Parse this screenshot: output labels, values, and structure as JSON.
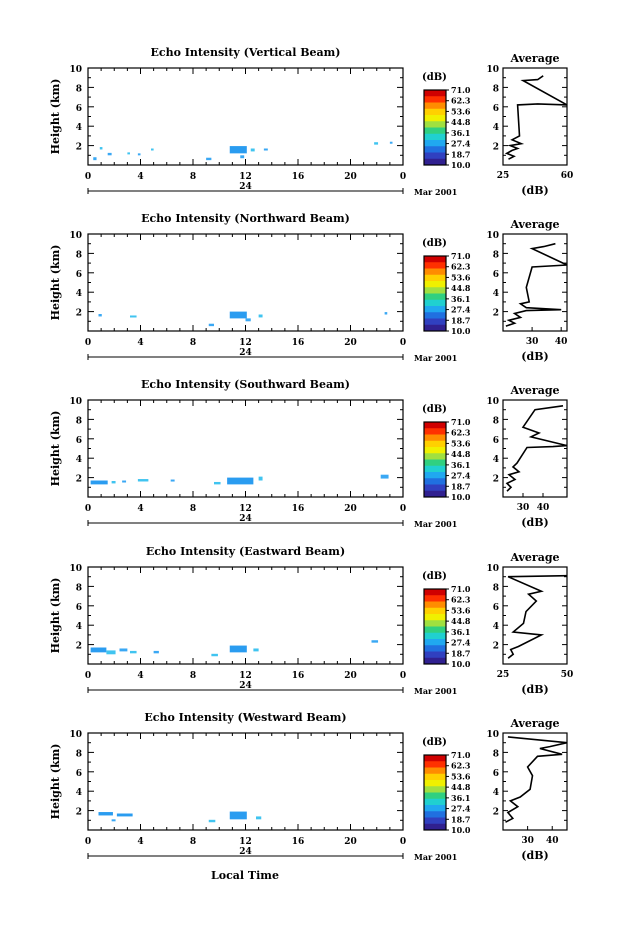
{
  "figure": {
    "x_label": "Local Time",
    "date_label": "Mar 2001",
    "day_label": "24",
    "colorbar_unit": "(dB)",
    "avg_title": "Average",
    "avg_xlabel": "(dB)",
    "y_label": "Height (km)"
  },
  "colorbar": {
    "levels": [
      "71.0",
      "62.3",
      "53.6",
      "44.8",
      "36.1",
      "27.4",
      "18.7",
      "10.0"
    ],
    "colors": [
      "#d00000",
      "#ff3000",
      "#ff8c00",
      "#ffd000",
      "#f0f000",
      "#a0e040",
      "#30d080",
      "#20d0d0",
      "#20a8f0",
      "#2070e0",
      "#3040c0",
      "#302090"
    ]
  },
  "chart_data": [
    {
      "type": "heatmap",
      "title": "Echo Intensity (Vertical Beam)",
      "xlim": [
        0,
        24
      ],
      "ylim": [
        0,
        10
      ],
      "xticks": [
        "0",
        "4",
        "8",
        "12",
        "16",
        "20",
        "0"
      ],
      "yticks": [
        "2",
        "4",
        "6",
        "8",
        "10"
      ],
      "avg": {
        "xlim": [
          25,
          60
        ],
        "xticks": [
          "25",
          "60"
        ],
        "profile": [
          [
            28,
            0.6
          ],
          [
            31,
            0.9
          ],
          [
            27,
            1.2
          ],
          [
            30,
            1.5
          ],
          [
            33,
            1.7
          ],
          [
            29,
            2.0
          ],
          [
            35,
            2.2
          ],
          [
            30,
            2.6
          ],
          [
            34,
            3.0
          ],
          [
            33,
            6.2
          ],
          [
            44,
            6.3
          ],
          [
            60,
            6.2
          ],
          [
            36,
            8.7
          ],
          [
            44,
            8.8
          ],
          [
            47,
            9.2
          ]
        ]
      },
      "echoes": [
        [
          0.4,
          0.5,
          0.25,
          0.3
        ],
        [
          0.9,
          1.6,
          0.2,
          0.25
        ],
        [
          1.5,
          1.0,
          0.3,
          0.25
        ],
        [
          3.0,
          1.1,
          0.2,
          0.2
        ],
        [
          3.8,
          1.0,
          0.2,
          0.2
        ],
        [
          4.8,
          1.5,
          0.2,
          0.2
        ],
        [
          9.0,
          0.5,
          0.4,
          0.25
        ],
        [
          10.8,
          1.2,
          1.3,
          0.75
        ],
        [
          11.6,
          0.7,
          0.3,
          0.3
        ],
        [
          12.4,
          1.4,
          0.3,
          0.3
        ],
        [
          13.4,
          1.5,
          0.3,
          0.2
        ],
        [
          21.8,
          2.1,
          0.3,
          0.25
        ],
        [
          23.0,
          2.2,
          0.2,
          0.2
        ]
      ]
    },
    {
      "type": "heatmap",
      "title": "Echo Intensity (Northward Beam)",
      "xlim": [
        0,
        24
      ],
      "ylim": [
        0,
        10
      ],
      "xticks": [
        "0",
        "4",
        "8",
        "12",
        "16",
        "20",
        "0"
      ],
      "yticks": [
        "2",
        "4",
        "6",
        "8",
        "10"
      ],
      "avg": {
        "xlim": [
          20,
          42
        ],
        "xticks": [
          "30",
          "40"
        ],
        "profile": [
          [
            21,
            0.5
          ],
          [
            24,
            0.8
          ],
          [
            22,
            1.1
          ],
          [
            26,
            1.4
          ],
          [
            24,
            1.8
          ],
          [
            28,
            2.1
          ],
          [
            40,
            2.2
          ],
          [
            28,
            2.4
          ],
          [
            26,
            2.8
          ],
          [
            29,
            3.0
          ],
          [
            28,
            4.5
          ],
          [
            30,
            6.6
          ],
          [
            42,
            6.8
          ],
          [
            30,
            8.5
          ],
          [
            34,
            8.7
          ],
          [
            38,
            9.0
          ]
        ]
      },
      "echoes": [
        [
          0.8,
          1.5,
          0.25,
          0.25
        ],
        [
          3.2,
          1.4,
          0.5,
          0.2
        ],
        [
          9.2,
          0.5,
          0.4,
          0.25
        ],
        [
          10.8,
          1.3,
          1.3,
          0.7
        ],
        [
          12.0,
          1.0,
          0.4,
          0.3
        ],
        [
          13.0,
          1.4,
          0.3,
          0.3
        ],
        [
          22.6,
          1.7,
          0.2,
          0.25
        ]
      ]
    },
    {
      "type": "heatmap",
      "title": "Echo Intensity (Southward Beam)",
      "xlim": [
        0,
        24
      ],
      "ylim": [
        0,
        10
      ],
      "xticks": [
        "0",
        "4",
        "8",
        "12",
        "16",
        "20",
        "0"
      ],
      "yticks": [
        "2",
        "4",
        "6",
        "8",
        "10"
      ],
      "avg": {
        "xlim": [
          20,
          52
        ],
        "xticks": [
          "30",
          "40"
        ],
        "profile": [
          [
            22,
            0.6
          ],
          [
            24,
            1.0
          ],
          [
            22,
            1.4
          ],
          [
            26,
            1.8
          ],
          [
            23,
            2.3
          ],
          [
            28,
            2.6
          ],
          [
            25,
            3.1
          ],
          [
            27,
            3.5
          ],
          [
            32,
            5.1
          ],
          [
            45,
            5.2
          ],
          [
            52,
            5.3
          ],
          [
            34,
            6.2
          ],
          [
            38,
            6.6
          ],
          [
            30,
            7.2
          ],
          [
            36,
            9.0
          ],
          [
            50,
            9.4
          ]
        ]
      },
      "echoes": [
        [
          0.2,
          1.3,
          1.3,
          0.4
        ],
        [
          1.8,
          1.4,
          0.3,
          0.25
        ],
        [
          2.6,
          1.5,
          0.3,
          0.2
        ],
        [
          3.8,
          1.6,
          0.8,
          0.25
        ],
        [
          6.3,
          1.6,
          0.3,
          0.2
        ],
        [
          9.6,
          1.3,
          0.5,
          0.25
        ],
        [
          10.6,
          1.3,
          2.0,
          0.7
        ],
        [
          13.0,
          1.7,
          0.3,
          0.4
        ],
        [
          22.3,
          1.9,
          0.6,
          0.4
        ]
      ]
    },
    {
      "type": "heatmap",
      "title": "Echo Intensity (Eastward Beam)",
      "xlim": [
        0,
        24
      ],
      "ylim": [
        0,
        10
      ],
      "xticks": [
        "0",
        "4",
        "8",
        "12",
        "16",
        "20",
        "0"
      ],
      "yticks": [
        "2",
        "4",
        "6",
        "8",
        "10"
      ],
      "avg": {
        "xlim": [
          25,
          50
        ],
        "xticks": [
          "25",
          "50"
        ],
        "profile": [
          [
            27,
            0.6
          ],
          [
            29,
            1.0
          ],
          [
            28,
            1.5
          ],
          [
            31,
            1.8
          ],
          [
            40,
            3.0
          ],
          [
            29,
            3.3
          ],
          [
            33,
            4.2
          ],
          [
            34,
            5.4
          ],
          [
            38,
            6.5
          ],
          [
            35,
            7.2
          ],
          [
            40,
            7.5
          ],
          [
            27,
            9.0
          ],
          [
            50,
            9.1
          ]
        ]
      },
      "echoes": [
        [
          0.2,
          1.2,
          1.2,
          0.5
        ],
        [
          1.4,
          1.0,
          0.7,
          0.4
        ],
        [
          2.4,
          1.3,
          0.6,
          0.3
        ],
        [
          3.2,
          1.1,
          0.5,
          0.25
        ],
        [
          5.0,
          1.1,
          0.4,
          0.25
        ],
        [
          9.4,
          0.8,
          0.5,
          0.25
        ],
        [
          10.8,
          1.2,
          1.3,
          0.7
        ],
        [
          12.6,
          1.3,
          0.4,
          0.3
        ],
        [
          21.6,
          2.2,
          0.5,
          0.25
        ]
      ]
    },
    {
      "type": "heatmap",
      "title": "Echo Intensity (Westward Beam)",
      "xlim": [
        0,
        24
      ],
      "ylim": [
        0,
        10
      ],
      "xticks": [
        "0",
        "4",
        "8",
        "12",
        "16",
        "20",
        "0"
      ],
      "yticks": [
        "2",
        "4",
        "6",
        "8",
        "10"
      ],
      "avg": {
        "xlim": [
          20,
          46
        ],
        "xticks": [
          "30",
          "40"
        ],
        "profile": [
          [
            21,
            0.8
          ],
          [
            24,
            1.2
          ],
          [
            22,
            1.8
          ],
          [
            26,
            2.4
          ],
          [
            23,
            3.0
          ],
          [
            27,
            3.4
          ],
          [
            31,
            4.2
          ],
          [
            32,
            5.6
          ],
          [
            30,
            6.5
          ],
          [
            34,
            7.6
          ],
          [
            44,
            7.8
          ],
          [
            35,
            8.4
          ],
          [
            39,
            8.6
          ],
          [
            46,
            9.0
          ],
          [
            22,
            9.6
          ]
        ]
      },
      "echoes": [
        [
          0.8,
          1.5,
          1.1,
          0.35
        ],
        [
          2.2,
          1.4,
          1.2,
          0.3
        ],
        [
          1.8,
          0.9,
          0.3,
          0.2
        ],
        [
          9.2,
          0.8,
          0.5,
          0.25
        ],
        [
          10.8,
          1.1,
          1.3,
          0.8
        ],
        [
          12.8,
          1.1,
          0.4,
          0.3
        ]
      ]
    }
  ]
}
